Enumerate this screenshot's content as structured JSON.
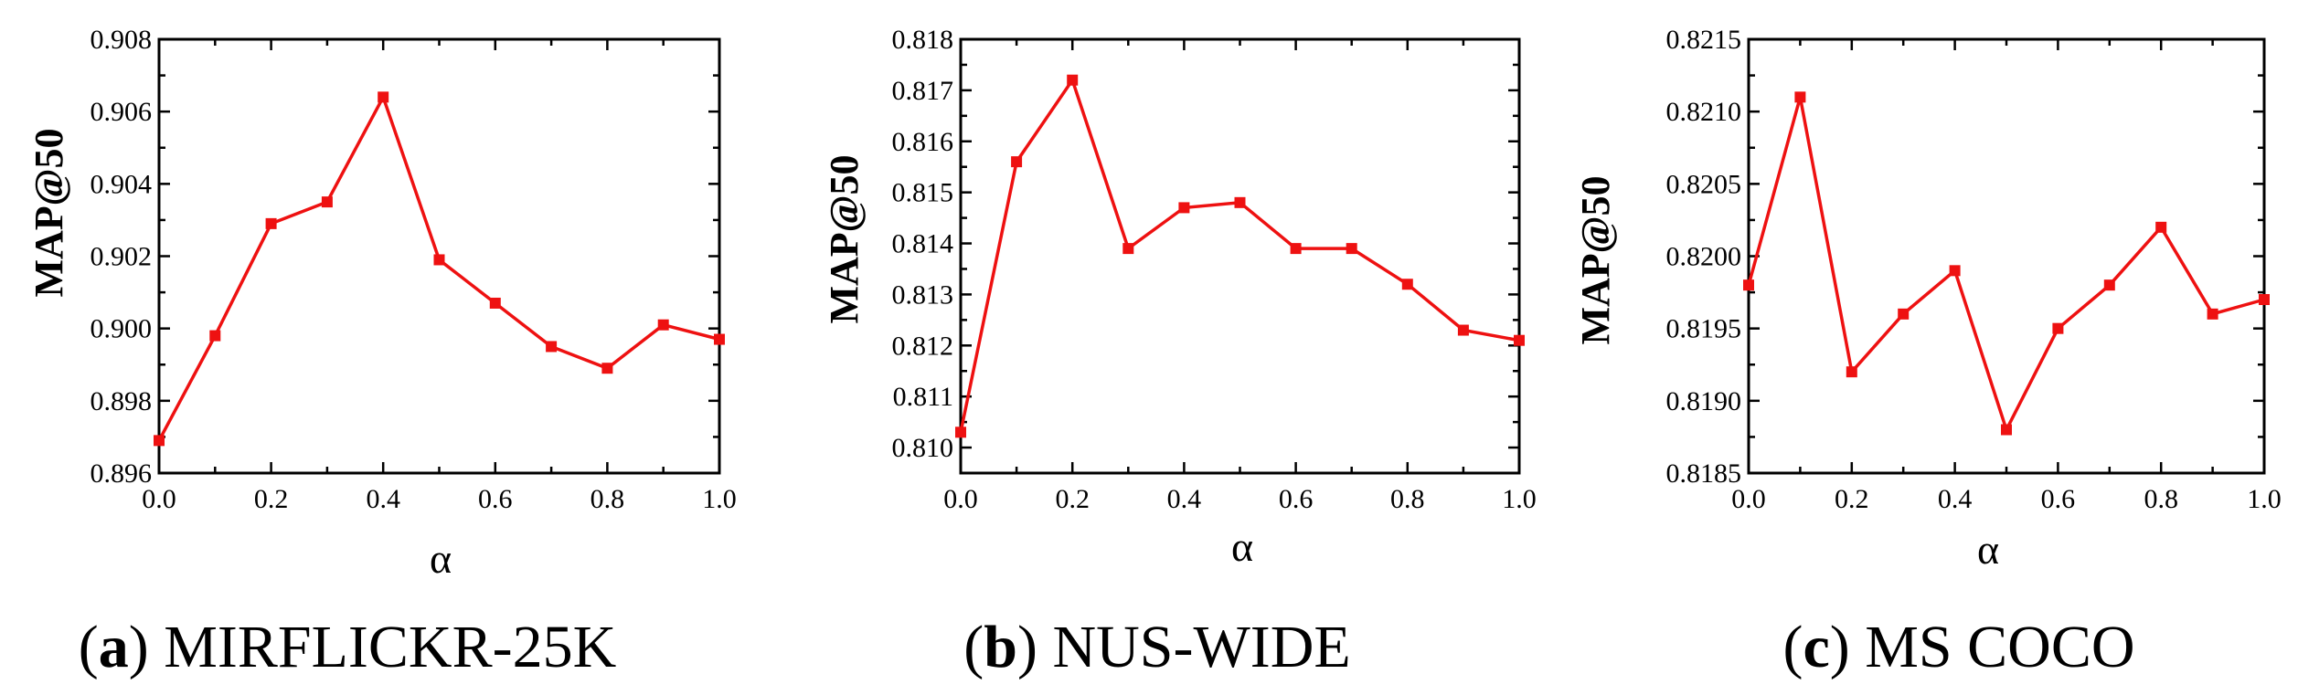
{
  "colors": {
    "series": "#ee1111",
    "axis": "#000000"
  },
  "chart_data": [
    {
      "type": "line",
      "caption_letter": "a",
      "caption_text": "MIRFLICKR-25K",
      "xlabel": "α",
      "ylabel": "MAP@50",
      "x": [
        0.0,
        0.1,
        0.2,
        0.3,
        0.4,
        0.5,
        0.6,
        0.7,
        0.8,
        0.9,
        1.0
      ],
      "values": [
        0.8969,
        0.8998,
        0.9029,
        0.9035,
        0.9064,
        0.9019,
        0.9007,
        0.8995,
        0.8989,
        0.9001,
        0.8997
      ],
      "xlim": [
        0.0,
        1.0
      ],
      "ylim": [
        0.896,
        0.908
      ],
      "xticks": [
        "0.0",
        "0.2",
        "0.4",
        "0.6",
        "0.8",
        "1.0"
      ],
      "yticks": [
        "0.896",
        "0.898",
        "0.900",
        "0.902",
        "0.904",
        "0.906",
        "0.908"
      ],
      "marker": "square"
    },
    {
      "type": "line",
      "caption_letter": "b",
      "caption_text": "NUS-WIDE",
      "xlabel": "α",
      "ylabel": "MAP@50",
      "x": [
        0.0,
        0.1,
        0.2,
        0.3,
        0.4,
        0.5,
        0.6,
        0.7,
        0.8,
        0.9,
        1.0
      ],
      "values": [
        0.8103,
        0.8156,
        0.8172,
        0.8139,
        0.8147,
        0.8148,
        0.8139,
        0.8139,
        0.8132,
        0.8123,
        0.8121
      ],
      "xlim": [
        0.0,
        1.0
      ],
      "ylim": [
        0.8095,
        0.818
      ],
      "xticks": [
        "0.0",
        "0.2",
        "0.4",
        "0.6",
        "0.8",
        "1.0"
      ],
      "yticks": [
        "0.810",
        "0.811",
        "0.812",
        "0.813",
        "0.814",
        "0.815",
        "0.816",
        "0.817",
        "0.818"
      ],
      "marker": "square"
    },
    {
      "type": "line",
      "caption_letter": "c",
      "caption_text": "MS COCO",
      "xlabel": "α",
      "ylabel": "MAP@50",
      "x": [
        0.0,
        0.1,
        0.2,
        0.3,
        0.4,
        0.5,
        0.6,
        0.7,
        0.8,
        0.9,
        1.0
      ],
      "values": [
        0.8198,
        0.8211,
        0.8192,
        0.8196,
        0.8199,
        0.8188,
        0.8195,
        0.8198,
        0.8202,
        0.8196,
        0.8197
      ],
      "xlim": [
        0.0,
        1.0
      ],
      "ylim": [
        0.8185,
        0.8215
      ],
      "xticks": [
        "0.0",
        "0.2",
        "0.4",
        "0.6",
        "0.8",
        "1.0"
      ],
      "yticks": [
        "0.8185",
        "0.8190",
        "0.8195",
        "0.8200",
        "0.8205",
        "0.8210",
        "0.8215"
      ],
      "marker": "square"
    }
  ]
}
